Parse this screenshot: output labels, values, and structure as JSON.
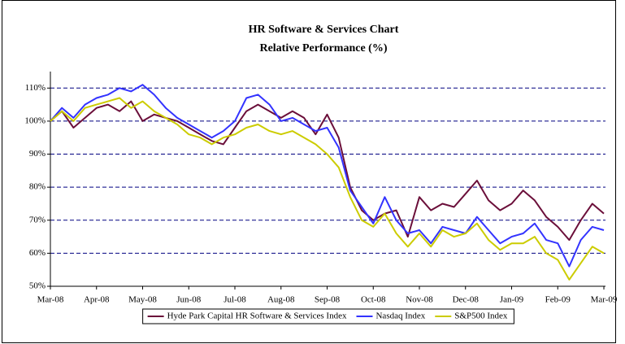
{
  "chart_data": {
    "type": "line",
    "title": "HR Software & Services Chart",
    "subtitle": "Relative Performance (%)",
    "categories": [
      "Mar-08",
      null,
      null,
      null,
      "Apr-08",
      null,
      null,
      null,
      "May-08",
      null,
      null,
      null,
      "Jun-08",
      null,
      null,
      null,
      "Jul-08",
      null,
      null,
      null,
      "Aug-08",
      null,
      null,
      null,
      "Sep-08",
      null,
      null,
      null,
      "Oct-08",
      null,
      null,
      null,
      "Nov-08",
      null,
      null,
      null,
      "Dec-08",
      null,
      null,
      null,
      "Jan-09",
      null,
      null,
      null,
      "Feb-09",
      null,
      null,
      null,
      "Mar-09"
    ],
    "series": [
      {
        "name": "Hyde Park Capital HR Software & Services Index",
        "color": "#6b0f3a",
        "values": [
          100,
          103,
          98,
          101,
          104,
          105,
          103,
          106,
          100,
          102,
          101,
          100,
          98,
          96,
          94,
          93,
          98,
          103,
          105,
          103,
          101,
          103,
          101,
          96,
          102,
          95,
          80,
          73,
          70,
          72,
          73,
          65,
          77,
          73,
          75,
          74,
          78,
          82,
          76,
          73,
          75,
          79,
          76,
          71,
          68,
          64,
          70,
          75,
          72
        ]
      },
      {
        "name": "Nasdaq Index",
        "color": "#3333ff",
        "values": [
          100,
          104,
          101,
          105,
          107,
          108,
          110,
          109,
          111,
          108,
          104,
          101,
          99,
          97,
          95,
          97,
          100,
          107,
          108,
          105,
          100,
          101,
          99,
          97,
          98,
          92,
          79,
          74,
          69,
          77,
          70,
          66,
          67,
          63,
          68,
          67,
          66,
          71,
          67,
          63,
          65,
          66,
          69,
          64,
          63,
          56,
          64,
          68,
          67
        ]
      },
      {
        "name": "S&P500 Index",
        "color": "#cccc00",
        "values": [
          100,
          103,
          100,
          104,
          105,
          106,
          107,
          104,
          106,
          103,
          101,
          99,
          96,
          95,
          93,
          95,
          96,
          98,
          99,
          97,
          96,
          97,
          95,
          93,
          90,
          86,
          77,
          70,
          68,
          72,
          66,
          62,
          66,
          62,
          67,
          65,
          66,
          69,
          64,
          61,
          63,
          63,
          65,
          60,
          58,
          52,
          57,
          62,
          60
        ]
      }
    ],
    "ylim": [
      50,
      115
    ],
    "yticks": [
      {
        "value": 50,
        "label": "50%"
      },
      {
        "value": 60,
        "label": "60%"
      },
      {
        "value": 70,
        "label": "70%"
      },
      {
        "value": 80,
        "label": "80%"
      },
      {
        "value": 90,
        "label": "90%"
      },
      {
        "value": 100,
        "label": "100%"
      },
      {
        "value": 110,
        "label": "110%"
      }
    ],
    "grid": true,
    "legend": "bottom"
  }
}
